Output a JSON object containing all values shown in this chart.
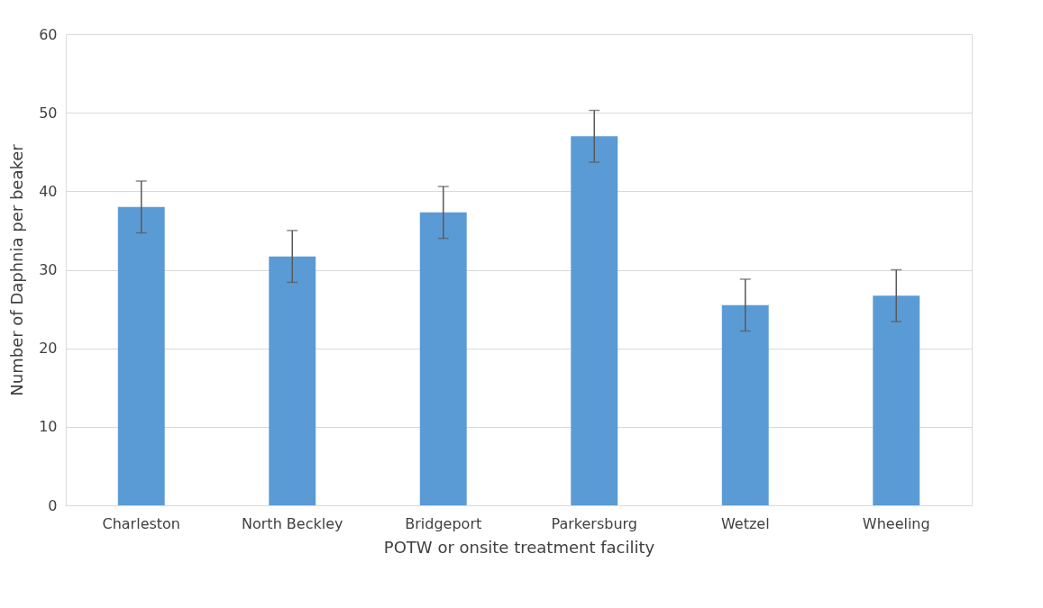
{
  "chart_data": {
    "type": "bar",
    "xlabel": "POTW or onsite treatment facility",
    "ylabel": "Number of Daphnia per beaker",
    "categories": [
      "Charleston",
      "North Beckley",
      "Bridgeport",
      "Parkersburg",
      "Wetzel",
      "Wheeling"
    ],
    "values": [
      38.0,
      31.7,
      37.3,
      47.0,
      25.5,
      26.7
    ],
    "errors": [
      3.3,
      3.3,
      3.3,
      3.3,
      3.3,
      3.3
    ],
    "color": "#5b9bd5",
    "ylim": [
      0,
      60
    ],
    "yticks": [
      0,
      10,
      20,
      30,
      40,
      50,
      60
    ],
    "grid": "y"
  }
}
